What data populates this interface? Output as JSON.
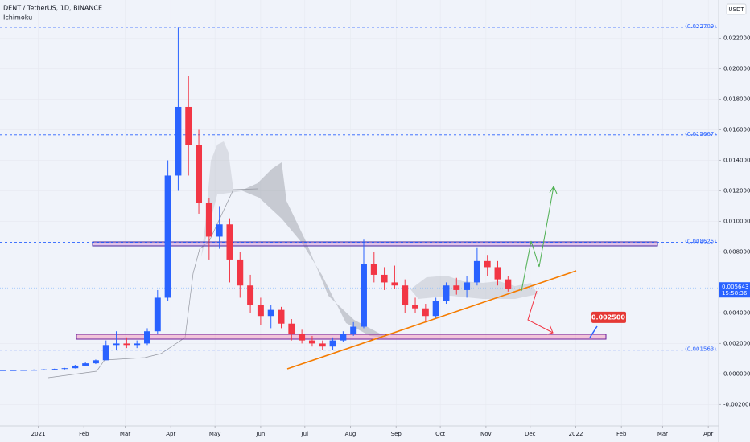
{
  "chart_data": {
    "type": "candlestick",
    "title": "DENT / TetherUS, 1D, BINANCE",
    "indicator": "Ichimoku",
    "currency": "USDT",
    "up_color": "#2962ff",
    "down_color": "#f23645",
    "xlim": [
      -26,
      462
    ],
    "ylim": [
      -0.0034,
      0.0245
    ],
    "grid": true,
    "xticks": [
      {
        "value": 0,
        "label": "2021"
      },
      {
        "value": 31,
        "label": "Feb"
      },
      {
        "value": 59,
        "label": "Mar"
      },
      {
        "value": 90,
        "label": "Apr"
      },
      {
        "value": 120,
        "label": "May"
      },
      {
        "value": 151,
        "label": "Jun"
      },
      {
        "value": 181,
        "label": "Jul"
      },
      {
        "value": 212,
        "label": "Aug"
      },
      {
        "value": 243,
        "label": "Sep"
      },
      {
        "value": 273,
        "label": "Oct"
      },
      {
        "value": 304,
        "label": "Nov"
      },
      {
        "value": 334,
        "label": "Dec"
      },
      {
        "value": 365,
        "label": "2022"
      },
      {
        "value": 396,
        "label": "Feb"
      },
      {
        "value": 424,
        "label": "Mar"
      },
      {
        "value": 455,
        "label": "Apr"
      }
    ],
    "yticks": [
      {
        "value": 0.022,
        "label": "0.022000"
      },
      {
        "value": 0.02,
        "label": "0.020000"
      },
      {
        "value": 0.018,
        "label": "0.018000"
      },
      {
        "value": 0.016,
        "label": "0.016000"
      },
      {
        "value": 0.014,
        "label": "0.014000"
      },
      {
        "value": 0.012,
        "label": "0.012000"
      },
      {
        "value": 0.01,
        "label": "0.010000"
      },
      {
        "value": 0.008,
        "label": "0.008000"
      },
      {
        "value": 0.004,
        "label": "0.004000"
      },
      {
        "value": 0.002,
        "label": "0.002000"
      },
      {
        "value": 0,
        "label": "0.000000"
      },
      {
        "value": -0.002,
        "label": "-0.002000"
      }
    ],
    "levels": [
      {
        "value": 0.022709,
        "label": "(0.022709)"
      },
      {
        "value": 0.015667,
        "label": "(0.015667)"
      },
      {
        "value": 0.008625,
        "label": "(0.008625)"
      },
      {
        "value": 0.001563,
        "label": "(0.001563)"
      }
    ],
    "last_price": {
      "value": 0.005643,
      "label": "0.005643"
    },
    "countdown": "15:58:36",
    "target": {
      "value": 0.0025,
      "label": "0.002500"
    },
    "x": [
      -24,
      -17,
      -10,
      -3,
      4,
      11,
      18,
      25,
      32,
      39,
      46,
      53,
      60,
      67,
      74,
      81,
      88,
      95,
      102,
      109,
      116,
      123,
      130,
      137,
      144,
      151,
      158,
      165,
      172,
      179,
      186,
      193,
      200,
      207,
      214,
      221,
      228,
      235,
      242,
      249,
      256,
      263,
      270,
      277,
      284,
      291,
      298,
      305,
      312,
      319
    ],
    "open": [
      0.00024,
      0.00025,
      0.00025,
      0.00026,
      0.00027,
      0.0003,
      0.00033,
      0.00038,
      0.00055,
      0.0007,
      0.0009,
      0.0019,
      0.002,
      0.0019,
      0.002,
      0.0028,
      0.005,
      0.013,
      0.0175,
      0.015,
      0.0112,
      0.009,
      0.0098,
      0.0075,
      0.0058,
      0.0045,
      0.0038,
      0.0042,
      0.0033,
      0.0026,
      0.0022,
      0.002,
      0.0018,
      0.0022,
      0.0026,
      0.0031,
      0.0072,
      0.0065,
      0.006,
      0.0058,
      0.0045,
      0.0043,
      0.0038,
      0.0048,
      0.0058,
      0.0055,
      0.006,
      0.0074,
      0.007,
      0.0062
    ],
    "high": [
      0.00026,
      0.00027,
      0.00028,
      0.0003,
      0.00032,
      0.00035,
      0.0004,
      0.0006,
      0.0008,
      0.00095,
      0.0022,
      0.0028,
      0.0024,
      0.0022,
      0.003,
      0.0055,
      0.014,
      0.0227,
      0.0195,
      0.016,
      0.0115,
      0.011,
      0.0102,
      0.008,
      0.0065,
      0.005,
      0.0045,
      0.0044,
      0.0036,
      0.0029,
      0.0025,
      0.0022,
      0.0024,
      0.0028,
      0.0034,
      0.0088,
      0.008,
      0.007,
      0.0071,
      0.0062,
      0.005,
      0.0046,
      0.005,
      0.006,
      0.0063,
      0.0064,
      0.0083,
      0.0078,
      0.0074,
      0.0064
    ],
    "low": [
      0.00022,
      0.00023,
      0.00023,
      0.00024,
      0.00025,
      0.00028,
      0.0003,
      0.00036,
      0.0005,
      0.00065,
      0.0009,
      0.0016,
      0.0017,
      0.0017,
      0.0019,
      0.0026,
      0.0048,
      0.012,
      0.013,
      0.0105,
      0.0075,
      0.0082,
      0.006,
      0.005,
      0.004,
      0.0032,
      0.003,
      0.003,
      0.0022,
      0.002,
      0.0018,
      0.0016,
      0.0016,
      0.0021,
      0.0025,
      0.003,
      0.006,
      0.0055,
      0.0056,
      0.004,
      0.004,
      0.0034,
      0.0036,
      0.0046,
      0.0052,
      0.005,
      0.0058,
      0.0064,
      0.0058,
      0.0054
    ],
    "close": [
      0.00025,
      0.00025,
      0.00026,
      0.00027,
      0.0003,
      0.00033,
      0.00038,
      0.00055,
      0.0007,
      0.0009,
      0.0019,
      0.002,
      0.0019,
      0.002,
      0.0028,
      0.005,
      0.013,
      0.0175,
      0.015,
      0.0112,
      0.009,
      0.0098,
      0.0075,
      0.0058,
      0.0045,
      0.0038,
      0.0042,
      0.0033,
      0.0026,
      0.0022,
      0.002,
      0.0018,
      0.0022,
      0.0026,
      0.0031,
      0.0072,
      0.0065,
      0.006,
      0.0058,
      0.0045,
      0.0043,
      0.0038,
      0.0048,
      0.0058,
      0.0055,
      0.006,
      0.0074,
      0.007,
      0.0062,
      0.0056
    ]
  }
}
